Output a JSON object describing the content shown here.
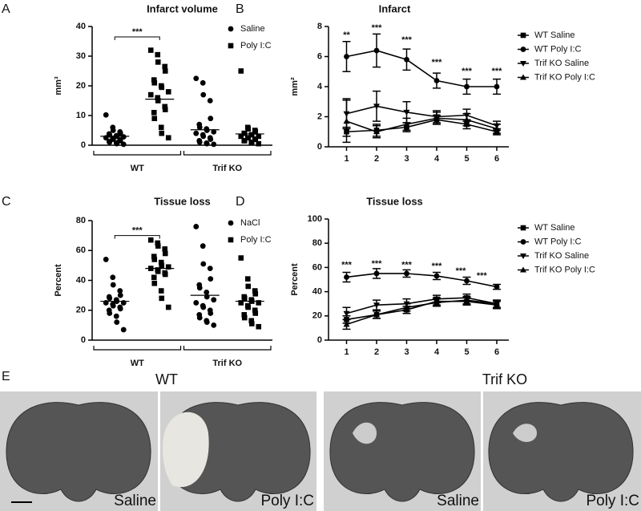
{
  "chart_data": [
    {
      "type": "dot",
      "panel": "A",
      "title": "Infarct volume",
      "ylabel": "mm³",
      "categories": [
        "WT",
        "Trif KO"
      ],
      "ylim": [
        0,
        40
      ],
      "yticks": [
        0,
        10,
        20,
        30,
        40
      ],
      "series": [
        {
          "name": "Saline",
          "marker": "circle",
          "color": "#000000",
          "values": [
            [
              10.2,
              6,
              5,
              4.5,
              4,
              3.8,
              3.5,
              3.2,
              3,
              2.8,
              2.5,
              2.3,
              2,
              1.8,
              1.5,
              1.2,
              1,
              0.8,
              0.5,
              0.3
            ],
            [
              22.5,
              21,
              17,
              15,
              9,
              7,
              6,
              5.5,
              5,
              4.5,
              4,
              3.5,
              3,
              2.5,
              2,
              1.5,
              1,
              0.7,
              0.5,
              0.3
            ]
          ],
          "means": [
            3,
            5.2
          ]
        },
        {
          "name": "Poly I:C",
          "marker": "square",
          "color": "#000000",
          "values": [
            [
              32,
              30.5,
              28,
              26.5,
              25,
              22,
              21,
              20,
              19.5,
              18,
              17,
              16,
              15,
              13,
              12,
              11,
              9,
              6,
              4,
              2.5
            ],
            [
              25,
              6,
              5.5,
              5,
              4.5,
              4,
              4,
              3.5,
              3.5,
              3,
              3,
              2.5,
              2.5,
              2,
              2,
              1.5,
              1.5,
              1,
              0.8,
              0.5
            ]
          ],
          "means": [
            15.5,
            3.8
          ]
        }
      ],
      "annotations": [
        {
          "label": "***",
          "y": 36.5
        }
      ]
    },
    {
      "type": "line",
      "panel": "B",
      "title": "Infarct",
      "ylabel": "mm²",
      "x": [
        1,
        2,
        3,
        4,
        5,
        6
      ],
      "xlim": [
        0.4,
        6.4
      ],
      "ylim": [
        0,
        8
      ],
      "yticks": [
        0,
        2,
        4,
        6,
        8
      ],
      "series": [
        {
          "name": "WT Saline",
          "marker": "square",
          "color": "#000000",
          "values": [
            1.0,
            1.1,
            1.3,
            1.8,
            1.5,
            1.0
          ],
          "errors": [
            0.3,
            0.4,
            0.3,
            0.3,
            0.3,
            0.2
          ]
        },
        {
          "name": "WT Poly I:C",
          "marker": "circle",
          "color": "#000000",
          "values": [
            6.0,
            6.4,
            5.8,
            4.4,
            4.0,
            4.0
          ],
          "errors": [
            1.0,
            1.1,
            0.7,
            0.5,
            0.5,
            0.5
          ]
        },
        {
          "name": "Trif KO Saline",
          "marker": "down",
          "color": "#000000",
          "values": [
            2.2,
            2.7,
            2.3,
            2.0,
            2.1,
            1.4
          ],
          "errors": [
            1.0,
            1.0,
            0.7,
            0.4,
            0.4,
            0.3
          ]
        },
        {
          "name": "Trif KO Poly I:C",
          "marker": "up",
          "color": "#000000",
          "values": [
            1.7,
            1.0,
            1.5,
            1.9,
            1.8,
            1.2
          ],
          "errors": [
            1.4,
            0.4,
            0.4,
            0.4,
            0.4,
            0.3
          ]
        }
      ],
      "annotations": [
        {
          "label": "**",
          "x": 1,
          "y": 7.4
        },
        {
          "label": "***",
          "x": 2,
          "y": 7.9
        },
        {
          "label": "***",
          "x": 3,
          "y": 7.1
        },
        {
          "label": "***",
          "x": 4,
          "y": 5.6
        },
        {
          "label": "***",
          "x": 5,
          "y": 5.0
        },
        {
          "label": "***",
          "x": 6,
          "y": 5.0
        }
      ]
    },
    {
      "type": "dot",
      "panel": "C",
      "title": "Tissue loss",
      "ylabel": "Percent",
      "categories": [
        "WT",
        "Trif KO"
      ],
      "ylim": [
        0,
        80
      ],
      "yticks": [
        0,
        20,
        40,
        60,
        80
      ],
      "series": [
        {
          "name": "NaCl",
          "marker": "circle",
          "color": "#000000",
          "values": [
            [
              54,
              42,
              37,
              33,
              30,
              29,
              28,
              27,
              26,
              25,
              25,
              24,
              23,
              22,
              21,
              20,
              18,
              16,
              12,
              7
            ],
            [
              76,
              63,
              51,
              48,
              41,
              37,
              35,
              32,
              29,
              27,
              25,
              23,
              22,
              20,
              18,
              17,
              15,
              13,
              12,
              10
            ]
          ],
          "means": [
            26,
            30
          ]
        },
        {
          "name": "Poly I:C",
          "marker": "square",
          "color": "#000000",
          "values": [
            [
              67,
              65,
              63,
              61,
              58,
              56,
              54,
              52,
              50,
              49,
              48,
              47,
              46,
              45,
              44,
              42,
              38,
              33,
              28,
              22
            ],
            [
              55,
              41,
              36,
              33,
              31,
              29,
              28,
              27,
              26,
              25,
              25,
              23,
              22,
              20,
              18,
              17,
              15,
              13,
              11,
              9
            ]
          ],
          "means": [
            48,
            26
          ]
        }
      ],
      "annotations": [
        {
          "label": "***",
          "y": 70
        }
      ]
    },
    {
      "type": "line",
      "panel": "D",
      "title": "Tissue loss",
      "ylabel": "Percent",
      "x": [
        1,
        2,
        3,
        4,
        5,
        6
      ],
      "xlim": [
        0.4,
        6.4
      ],
      "ylim": [
        0,
        100
      ],
      "yticks": [
        0,
        20,
        40,
        60,
        80,
        100
      ],
      "series": [
        {
          "name": "WT Saline",
          "marker": "square",
          "color": "#000000",
          "values": [
            17,
            21,
            25,
            32,
            32,
            29
          ],
          "errors": [
            3,
            3,
            3,
            3,
            3,
            3
          ]
        },
        {
          "name": "WT Poly I:C",
          "marker": "circle",
          "color": "#000000",
          "values": [
            52,
            55,
            55,
            53,
            49,
            44
          ],
          "errors": [
            4,
            4,
            3,
            3,
            3,
            2
          ]
        },
        {
          "name": "Trif KO Saline",
          "marker": "down",
          "color": "#000000",
          "values": [
            22,
            29,
            30,
            34,
            35,
            30
          ],
          "errors": [
            5,
            4,
            4,
            3,
            3,
            3
          ]
        },
        {
          "name": "Trif KO Poly I:C",
          "marker": "up",
          "color": "#000000",
          "values": [
            13,
            21,
            27,
            31,
            33,
            30
          ],
          "errors": [
            4,
            3,
            3,
            3,
            3,
            3
          ]
        }
      ],
      "annotations": [
        {
          "label": "***",
          "x": 1,
          "y": 62
        },
        {
          "label": "***",
          "x": 2,
          "y": 63
        },
        {
          "label": "***",
          "x": 3,
          "y": 62
        },
        {
          "label": "***",
          "x": 4,
          "y": 61
        },
        {
          "label": "***",
          "x": 4.8,
          "y": 57
        },
        {
          "label": "***",
          "x": 5.5,
          "y": 53
        }
      ]
    }
  ],
  "panel_e": {
    "panel": "E",
    "groups": [
      "WT",
      "Trif KO"
    ],
    "images": [
      "Saline",
      "Poly I:C",
      "Saline",
      "Poly I:C"
    ]
  }
}
